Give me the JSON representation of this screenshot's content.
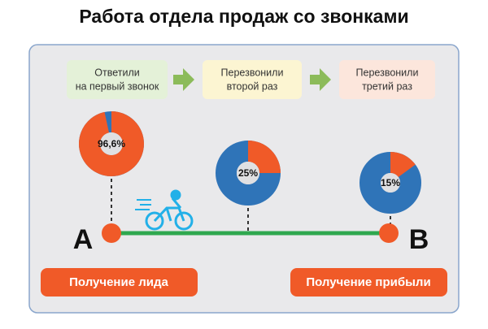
{
  "header": {
    "title": "Работа отдела продаж со звонками"
  },
  "steps": [
    {
      "label_lines": [
        "Ответили",
        "на первый звонок"
      ]
    },
    {
      "label_lines": [
        "Перезвонили",
        "второй раз"
      ]
    },
    {
      "label_lines": [
        "Перезвонили",
        "третий раз"
      ]
    }
  ],
  "donuts": [
    {
      "value": 96.6,
      "label": "96,6%"
    },
    {
      "value": 25,
      "label": "25%"
    },
    {
      "value": 15,
      "label": "15%"
    }
  ],
  "points": {
    "start": "A",
    "end": "B"
  },
  "buttons": {
    "start": "Получение лида",
    "end": "Получение прибыли"
  }
}
